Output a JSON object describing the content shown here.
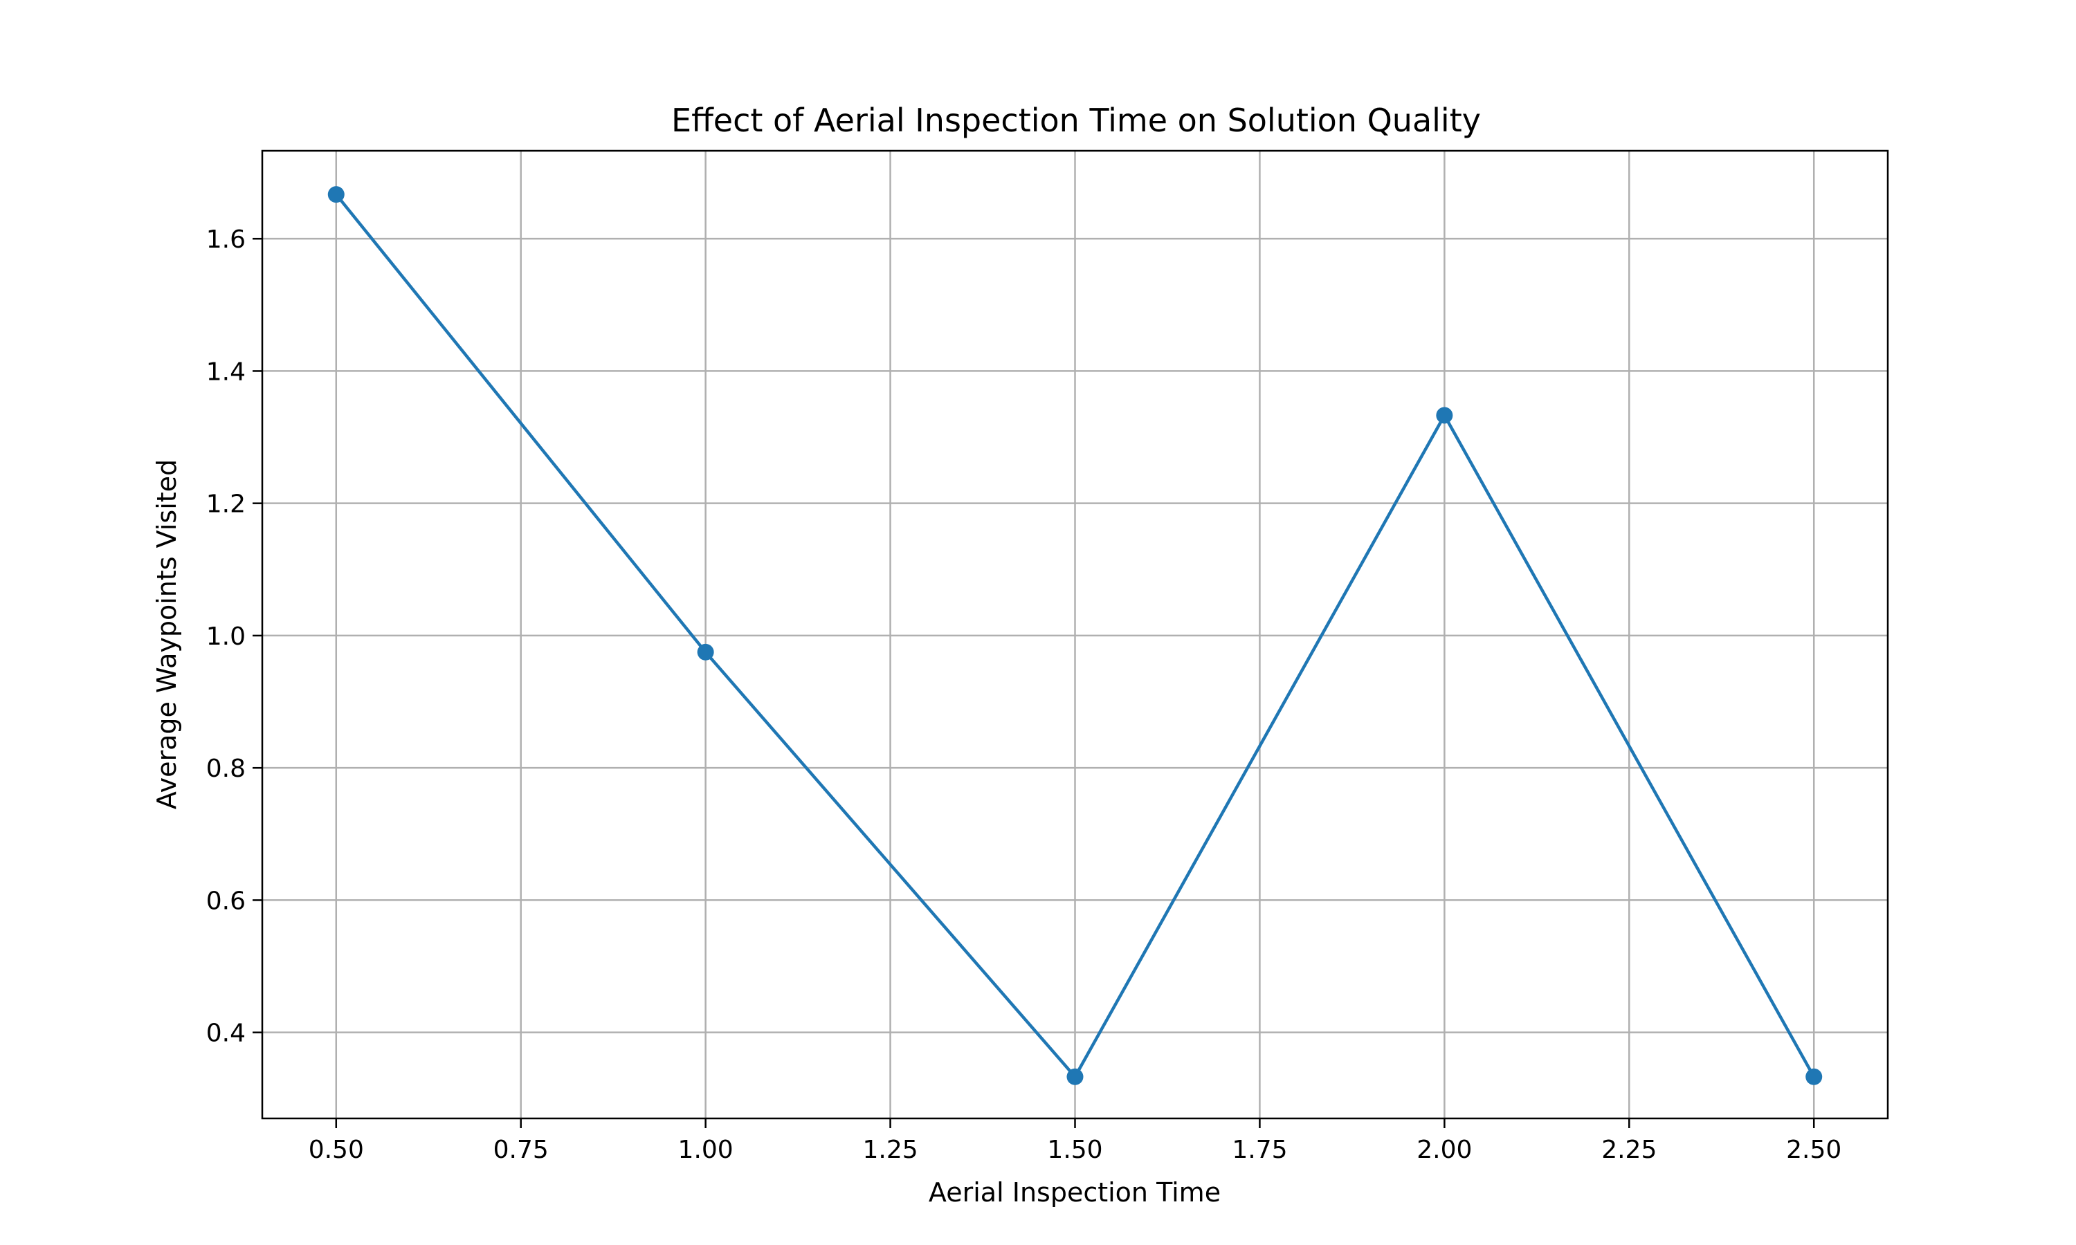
{
  "chart_data": {
    "type": "line",
    "title": "Effect of Aerial Inspection Time on Solution Quality",
    "xlabel": "Aerial Inspection Time",
    "ylabel": "Average Waypoints Visited",
    "xlim": [
      0.4,
      2.6
    ],
    "ylim": [
      0.27,
      1.733
    ],
    "xticks": [
      0.5,
      0.75,
      1.0,
      1.25,
      1.5,
      1.75,
      2.0,
      2.25,
      2.5
    ],
    "xtick_labels": [
      "0.50",
      "0.75",
      "1.00",
      "1.25",
      "1.50",
      "1.75",
      "2.00",
      "2.25",
      "2.50"
    ],
    "yticks": [
      0.4,
      0.6,
      0.8,
      1.0,
      1.2,
      1.4,
      1.6
    ],
    "ytick_labels": [
      "0.4",
      "0.6",
      "0.8",
      "1.0",
      "1.2",
      "1.4",
      "1.6"
    ],
    "grid": true,
    "series": [
      {
        "x": [
          0.5,
          1.0,
          1.5,
          2.0,
          2.5
        ],
        "values": [
          1.667,
          0.975,
          0.333,
          1.333,
          0.333
        ],
        "color": "#1f77b4",
        "marker": "circle"
      }
    ]
  }
}
